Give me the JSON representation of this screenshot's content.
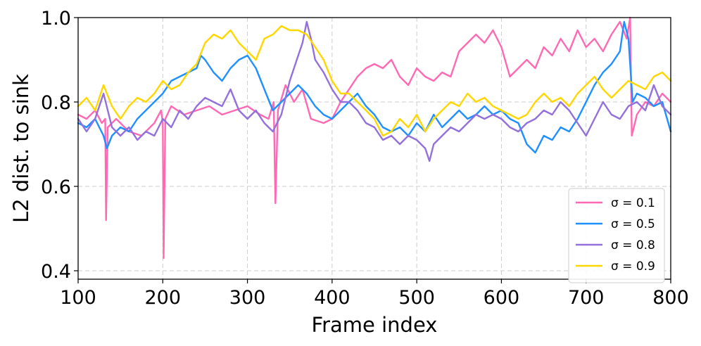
{
  "chart_data": {
    "type": "line",
    "title": "",
    "xlabel": "Frame index",
    "ylabel": "L2 dist. to sink",
    "xlim": [
      100,
      800
    ],
    "ylim": [
      0.38,
      1.0
    ],
    "xticks": [
      100,
      200,
      300,
      400,
      500,
      600,
      700,
      800
    ],
    "xtick_labels": [
      "100",
      "200",
      "300",
      "400",
      "500",
      "600",
      "700",
      "800"
    ],
    "yticks": [
      0.4,
      0.6,
      0.8,
      1.0
    ],
    "ytick_labels": [
      "0.4",
      "0.6",
      "0.8",
      "1.0"
    ],
    "grid": true,
    "legend_position": "lower-right",
    "series": [
      {
        "name": "σ = 0.1",
        "color": "#ff69b4",
        "points": [
          [
            100,
            0.77
          ],
          [
            110,
            0.76
          ],
          [
            120,
            0.78
          ],
          [
            128,
            0.75
          ],
          [
            132,
            0.76
          ],
          [
            133,
            0.52
          ],
          [
            135,
            0.74
          ],
          [
            145,
            0.76
          ],
          [
            160,
            0.73
          ],
          [
            175,
            0.72
          ],
          [
            190,
            0.75
          ],
          [
            198,
            0.78
          ],
          [
            200,
            0.75
          ],
          [
            201,
            0.43
          ],
          [
            203,
            0.76
          ],
          [
            210,
            0.79
          ],
          [
            225,
            0.77
          ],
          [
            240,
            0.78
          ],
          [
            255,
            0.79
          ],
          [
            270,
            0.77
          ],
          [
            285,
            0.78
          ],
          [
            300,
            0.79
          ],
          [
            315,
            0.77
          ],
          [
            325,
            0.76
          ],
          [
            331,
            0.8
          ],
          [
            333,
            0.56
          ],
          [
            336,
            0.78
          ],
          [
            345,
            0.84
          ],
          [
            355,
            0.8
          ],
          [
            365,
            0.83
          ],
          [
            375,
            0.76
          ],
          [
            390,
            0.75
          ],
          [
            400,
            0.76
          ],
          [
            410,
            0.8
          ],
          [
            420,
            0.83
          ],
          [
            430,
            0.86
          ],
          [
            440,
            0.88
          ],
          [
            450,
            0.89
          ],
          [
            460,
            0.88
          ],
          [
            470,
            0.9
          ],
          [
            480,
            0.86
          ],
          [
            490,
            0.84
          ],
          [
            500,
            0.88
          ],
          [
            510,
            0.86
          ],
          [
            520,
            0.85
          ],
          [
            530,
            0.87
          ],
          [
            540,
            0.86
          ],
          [
            550,
            0.92
          ],
          [
            560,
            0.94
          ],
          [
            570,
            0.96
          ],
          [
            580,
            0.94
          ],
          [
            590,
            0.97
          ],
          [
            600,
            0.93
          ],
          [
            610,
            0.86
          ],
          [
            620,
            0.88
          ],
          [
            630,
            0.9
          ],
          [
            640,
            0.88
          ],
          [
            650,
            0.93
          ],
          [
            660,
            0.91
          ],
          [
            670,
            0.95
          ],
          [
            680,
            0.92
          ],
          [
            690,
            0.97
          ],
          [
            700,
            0.93
          ],
          [
            710,
            0.95
          ],
          [
            720,
            0.92
          ],
          [
            730,
            0.96
          ],
          [
            740,
            0.99
          ],
          [
            748,
            0.95
          ],
          [
            752,
            1.0
          ],
          [
            754,
            0.72
          ],
          [
            760,
            0.77
          ],
          [
            770,
            0.8
          ],
          [
            780,
            0.79
          ],
          [
            790,
            0.82
          ],
          [
            800,
            0.8
          ]
        ]
      },
      {
        "name": "σ = 0.5",
        "color": "#1e90ff",
        "points": [
          [
            100,
            0.75
          ],
          [
            110,
            0.74
          ],
          [
            120,
            0.76
          ],
          [
            130,
            0.72
          ],
          [
            134,
            0.69
          ],
          [
            140,
            0.72
          ],
          [
            150,
            0.74
          ],
          [
            160,
            0.73
          ],
          [
            170,
            0.76
          ],
          [
            180,
            0.78
          ],
          [
            190,
            0.8
          ],
          [
            200,
            0.82
          ],
          [
            210,
            0.85
          ],
          [
            220,
            0.86
          ],
          [
            230,
            0.87
          ],
          [
            240,
            0.88
          ],
          [
            245,
            0.91
          ],
          [
            250,
            0.9
          ],
          [
            260,
            0.87
          ],
          [
            270,
            0.85
          ],
          [
            280,
            0.88
          ],
          [
            290,
            0.9
          ],
          [
            300,
            0.91
          ],
          [
            310,
            0.88
          ],
          [
            320,
            0.83
          ],
          [
            330,
            0.78
          ],
          [
            340,
            0.8
          ],
          [
            350,
            0.82
          ],
          [
            360,
            0.84
          ],
          [
            370,
            0.82
          ],
          [
            380,
            0.79
          ],
          [
            390,
            0.77
          ],
          [
            400,
            0.76
          ],
          [
            410,
            0.78
          ],
          [
            420,
            0.8
          ],
          [
            430,
            0.82
          ],
          [
            440,
            0.79
          ],
          [
            450,
            0.77
          ],
          [
            460,
            0.74
          ],
          [
            470,
            0.73
          ],
          [
            480,
            0.74
          ],
          [
            490,
            0.72
          ],
          [
            500,
            0.75
          ],
          [
            510,
            0.73
          ],
          [
            520,
            0.77
          ],
          [
            530,
            0.74
          ],
          [
            540,
            0.76
          ],
          [
            550,
            0.78
          ],
          [
            560,
            0.76
          ],
          [
            570,
            0.77
          ],
          [
            580,
            0.79
          ],
          [
            590,
            0.77
          ],
          [
            600,
            0.78
          ],
          [
            610,
            0.76
          ],
          [
            620,
            0.75
          ],
          [
            630,
            0.7
          ],
          [
            640,
            0.68
          ],
          [
            650,
            0.72
          ],
          [
            660,
            0.71
          ],
          [
            670,
            0.74
          ],
          [
            680,
            0.73
          ],
          [
            690,
            0.76
          ],
          [
            700,
            0.8
          ],
          [
            710,
            0.84
          ],
          [
            720,
            0.87
          ],
          [
            730,
            0.89
          ],
          [
            740,
            0.92
          ],
          [
            745,
            0.99
          ],
          [
            750,
            0.95
          ],
          [
            755,
            0.8
          ],
          [
            760,
            0.82
          ],
          [
            770,
            0.81
          ],
          [
            780,
            0.79
          ],
          [
            790,
            0.8
          ],
          [
            800,
            0.73
          ]
        ]
      },
      {
        "name": "σ = 0.8",
        "color": "#9370db",
        "points": [
          [
            100,
            0.76
          ],
          [
            110,
            0.73
          ],
          [
            120,
            0.76
          ],
          [
            130,
            0.82
          ],
          [
            135,
            0.78
          ],
          [
            140,
            0.74
          ],
          [
            150,
            0.72
          ],
          [
            160,
            0.74
          ],
          [
            170,
            0.71
          ],
          [
            180,
            0.73
          ],
          [
            190,
            0.72
          ],
          [
            200,
            0.76
          ],
          [
            210,
            0.74
          ],
          [
            220,
            0.78
          ],
          [
            230,
            0.76
          ],
          [
            240,
            0.79
          ],
          [
            250,
            0.81
          ],
          [
            260,
            0.8
          ],
          [
            270,
            0.79
          ],
          [
            280,
            0.83
          ],
          [
            290,
            0.78
          ],
          [
            300,
            0.76
          ],
          [
            310,
            0.78
          ],
          [
            320,
            0.75
          ],
          [
            330,
            0.73
          ],
          [
            340,
            0.77
          ],
          [
            350,
            0.85
          ],
          [
            360,
            0.91
          ],
          [
            365,
            0.94
          ],
          [
            370,
            0.99
          ],
          [
            375,
            0.95
          ],
          [
            380,
            0.9
          ],
          [
            390,
            0.87
          ],
          [
            400,
            0.83
          ],
          [
            410,
            0.8
          ],
          [
            420,
            0.8
          ],
          [
            430,
            0.78
          ],
          [
            440,
            0.75
          ],
          [
            450,
            0.74
          ],
          [
            460,
            0.71
          ],
          [
            470,
            0.72
          ],
          [
            480,
            0.7
          ],
          [
            490,
            0.72
          ],
          [
            500,
            0.71
          ],
          [
            510,
            0.69
          ],
          [
            515,
            0.66
          ],
          [
            520,
            0.7
          ],
          [
            530,
            0.72
          ],
          [
            540,
            0.74
          ],
          [
            550,
            0.73
          ],
          [
            560,
            0.75
          ],
          [
            570,
            0.77
          ],
          [
            580,
            0.76
          ],
          [
            590,
            0.77
          ],
          [
            600,
            0.76
          ],
          [
            610,
            0.74
          ],
          [
            620,
            0.73
          ],
          [
            630,
            0.75
          ],
          [
            640,
            0.76
          ],
          [
            650,
            0.78
          ],
          [
            660,
            0.77
          ],
          [
            670,
            0.8
          ],
          [
            680,
            0.78
          ],
          [
            690,
            0.75
          ],
          [
            700,
            0.72
          ],
          [
            710,
            0.76
          ],
          [
            720,
            0.8
          ],
          [
            730,
            0.77
          ],
          [
            740,
            0.76
          ],
          [
            750,
            0.79
          ],
          [
            760,
            0.8
          ],
          [
            770,
            0.78
          ],
          [
            780,
            0.84
          ],
          [
            790,
            0.79
          ],
          [
            800,
            0.77
          ]
        ]
      },
      {
        "name": "σ = 0.9",
        "color": "#ffd700",
        "points": [
          [
            100,
            0.79
          ],
          [
            110,
            0.81
          ],
          [
            120,
            0.78
          ],
          [
            130,
            0.84
          ],
          [
            140,
            0.79
          ],
          [
            150,
            0.76
          ],
          [
            160,
            0.79
          ],
          [
            170,
            0.81
          ],
          [
            180,
            0.8
          ],
          [
            190,
            0.82
          ],
          [
            200,
            0.85
          ],
          [
            210,
            0.83
          ],
          [
            220,
            0.84
          ],
          [
            230,
            0.87
          ],
          [
            240,
            0.89
          ],
          [
            250,
            0.94
          ],
          [
            260,
            0.96
          ],
          [
            270,
            0.95
          ],
          [
            280,
            0.97
          ],
          [
            290,
            0.94
          ],
          [
            300,
            0.92
          ],
          [
            310,
            0.9
          ],
          [
            320,
            0.95
          ],
          [
            330,
            0.96
          ],
          [
            340,
            0.98
          ],
          [
            350,
            0.97
          ],
          [
            360,
            0.97
          ],
          [
            370,
            0.96
          ],
          [
            380,
            0.93
          ],
          [
            390,
            0.9
          ],
          [
            400,
            0.85
          ],
          [
            410,
            0.82
          ],
          [
            420,
            0.82
          ],
          [
            430,
            0.8
          ],
          [
            440,
            0.78
          ],
          [
            450,
            0.76
          ],
          [
            460,
            0.72
          ],
          [
            470,
            0.73
          ],
          [
            480,
            0.76
          ],
          [
            490,
            0.74
          ],
          [
            500,
            0.77
          ],
          [
            510,
            0.73
          ],
          [
            520,
            0.76
          ],
          [
            530,
            0.78
          ],
          [
            540,
            0.8
          ],
          [
            550,
            0.79
          ],
          [
            560,
            0.82
          ],
          [
            570,
            0.8
          ],
          [
            580,
            0.81
          ],
          [
            590,
            0.79
          ],
          [
            600,
            0.78
          ],
          [
            610,
            0.77
          ],
          [
            620,
            0.76
          ],
          [
            630,
            0.77
          ],
          [
            640,
            0.8
          ],
          [
            650,
            0.82
          ],
          [
            660,
            0.8
          ],
          [
            670,
            0.81
          ],
          [
            680,
            0.79
          ],
          [
            690,
            0.82
          ],
          [
            700,
            0.84
          ],
          [
            710,
            0.86
          ],
          [
            720,
            0.83
          ],
          [
            730,
            0.81
          ],
          [
            740,
            0.83
          ],
          [
            750,
            0.85
          ],
          [
            760,
            0.84
          ],
          [
            770,
            0.83
          ],
          [
            780,
            0.86
          ],
          [
            790,
            0.87
          ],
          [
            800,
            0.85
          ]
        ]
      }
    ]
  }
}
